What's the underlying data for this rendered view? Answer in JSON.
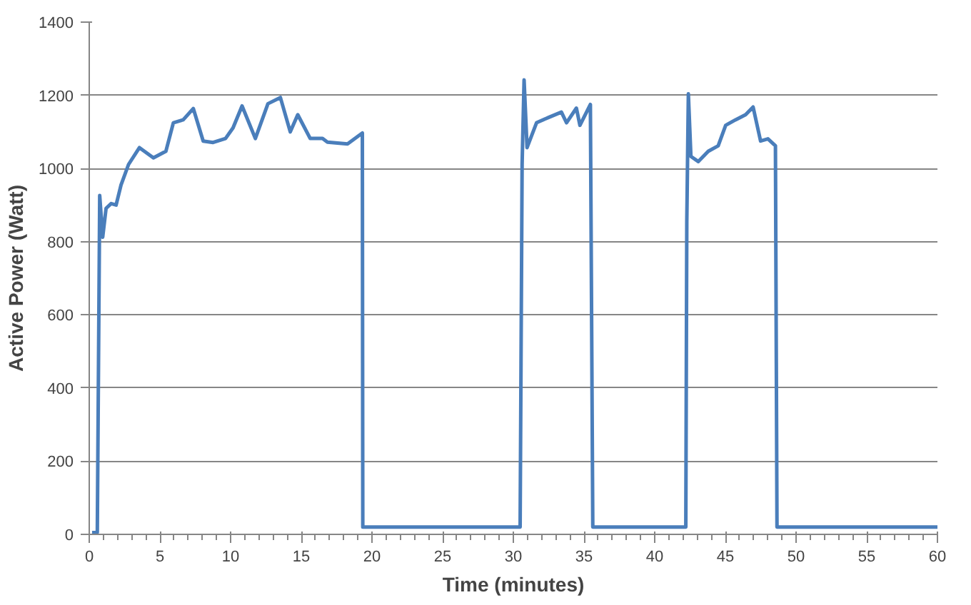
{
  "chart_data": {
    "type": "line",
    "xlabel": "Time (minutes)",
    "ylabel": "Active Power (Watt)",
    "xlim": [
      0,
      60
    ],
    "ylim": [
      0,
      1400
    ],
    "xticks": [
      0,
      5,
      10,
      15,
      20,
      25,
      30,
      35,
      40,
      45,
      50,
      55,
      60
    ],
    "yticks": [
      0,
      200,
      400,
      600,
      800,
      1000,
      1200,
      1400
    ],
    "grid": "y",
    "marker": "none",
    "line_style": "solid",
    "series": [
      {
        "color": "#4a7ebb",
        "x": [
          0.2,
          0.57,
          0.74,
          0.95,
          1.19,
          1.55,
          1.9,
          2.25,
          2.78,
          3.55,
          4.54,
          5.42,
          5.95,
          6.65,
          7.36,
          8.06,
          8.76,
          9.64,
          10.17,
          10.81,
          11.75,
          12.64,
          13.52,
          14.22,
          14.75,
          15.63,
          16.5,
          16.85,
          18.27,
          18.8,
          19.32,
          19.35,
          30.48,
          30.62,
          30.76,
          30.97,
          31.64,
          32.52,
          33.4,
          33.76,
          34.46,
          34.71,
          35.45,
          35.62,
          42.2,
          42.27,
          42.38,
          42.56,
          43.08,
          43.79,
          44.49,
          45.02,
          45.72,
          46.43,
          46.96,
          47.49,
          48.01,
          48.54,
          48.65,
          60
        ],
        "values": [
          5,
          5,
          926,
          812,
          891,
          904,
          900,
          955,
          1011,
          1057,
          1029,
          1047,
          1125,
          1133,
          1164,
          1075,
          1071,
          1082,
          1111,
          1171,
          1082,
          1177,
          1194,
          1100,
          1147,
          1082,
          1082,
          1072,
          1067,
          1082,
          1097,
          20,
          20,
          1011,
          1242,
          1057,
          1125,
          1140,
          1154,
          1125,
          1165,
          1118,
          1175,
          20,
          20,
          855,
          1204,
          1033,
          1019,
          1047,
          1062,
          1118,
          1133,
          1147,
          1168,
          1075,
          1081,
          1062,
          20,
          20
        ]
      }
    ]
  }
}
